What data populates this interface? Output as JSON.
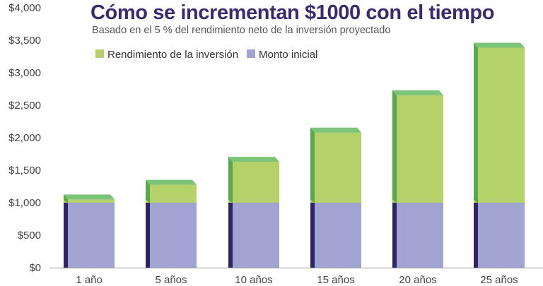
{
  "chart_data": {
    "type": "bar",
    "stacked": true,
    "title": "Cómo se incrementan $1000 con el tiempo",
    "subtitle": "Basado en el 5 % del rendimiento neto de la inversión proyectado",
    "categories": [
      "1 año",
      "5 años",
      "10 años",
      "15 años",
      "20 años",
      "25 años"
    ],
    "series": [
      {
        "name": "Monto inicial",
        "values": [
          1000,
          1000,
          1000,
          1000,
          1000,
          1000
        ],
        "color": "#a1a4d0"
      },
      {
        "name": "Rendimiento de la inversión",
        "values": [
          50,
          276,
          629,
          1079,
          1653,
          2386
        ],
        "color": "#b5d16a"
      }
    ],
    "ylim": [
      0,
      4000
    ],
    "yticks": [
      "$0",
      "$500",
      "$1,000",
      "$1,500",
      "$2,000",
      "$2,500",
      "$3,000",
      "$3,500",
      "$4,000"
    ],
    "legend_position": "top-left",
    "grid": false
  }
}
